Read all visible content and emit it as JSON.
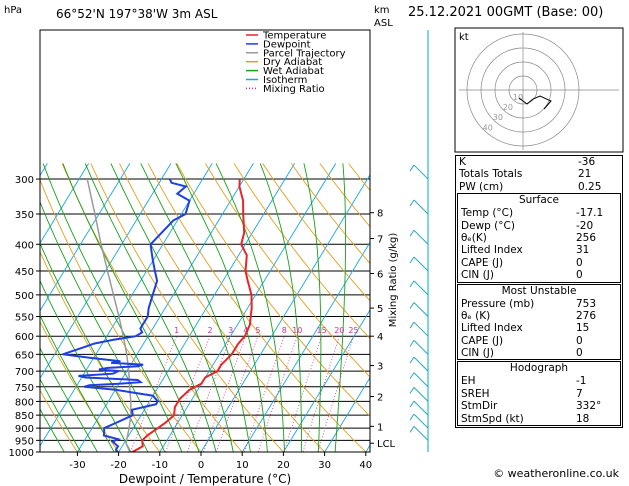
{
  "header": {
    "pressure_unit": "hPa",
    "location": "66°52'N  197°38'W  3m  ASL",
    "height_unit_top": "km",
    "height_unit_bottom": "ASL",
    "datetime": "25.12.2021  00GMT  (Base: 00)"
  },
  "legend": [
    {
      "label": "Temperature",
      "color": "#e8262a"
    },
    {
      "label": "Dewpoint",
      "color": "#1f3fe0"
    },
    {
      "label": "Parcel Trajectory",
      "color": "#9a9a9a"
    },
    {
      "label": "Dry Adiabat",
      "color": "#e0a020"
    },
    {
      "label": "Wet Adiabat",
      "color": "#1aa01a"
    },
    {
      "label": "Isotherm",
      "color": "#18a8e0"
    },
    {
      "label": "Mixing Ratio",
      "color": "#d0309a"
    }
  ],
  "chart_data": {
    "type": "line",
    "title": "",
    "xlabel": "Dewpoint / Temperature (°C)",
    "ylabel_right": "Mixing Ratio (g/kg)",
    "xlim": [
      -35,
      40
    ],
    "pressure_ticks": [
      300,
      350,
      400,
      450,
      500,
      550,
      600,
      650,
      700,
      750,
      800,
      850,
      900,
      950,
      1000
    ],
    "x_ticks": [
      -30,
      -20,
      -10,
      0,
      10,
      20,
      30,
      40
    ],
    "height_ticks": [
      {
        "label": "8",
        "p": 348
      },
      {
        "label": "7",
        "p": 390
      },
      {
        "label": "6",
        "p": 455
      },
      {
        "label": "5",
        "p": 530
      },
      {
        "label": "4",
        "p": 600
      },
      {
        "label": "3",
        "p": 683
      },
      {
        "label": "2",
        "p": 783
      },
      {
        "label": "1",
        "p": 893
      },
      {
        "label": "LCL",
        "p": 962
      }
    ],
    "mixing_ratio_labels": [
      "1",
      "2",
      "3",
      "4",
      "5",
      "8",
      "10",
      "15",
      "20",
      "25"
    ],
    "series": [
      {
        "name": "Temperature",
        "p": [
          1005,
          990,
          975,
          950,
          930,
          900,
          880,
          850,
          820,
          790,
          760,
          740,
          720,
          700,
          680,
          650,
          620,
          600,
          570,
          550,
          530,
          500,
          470,
          450,
          420,
          400,
          380,
          350,
          330,
          310,
          300
        ],
        "t": [
          -17,
          -16,
          -15,
          -16,
          -15.5,
          -14,
          -13,
          -12,
          -13,
          -13,
          -12,
          -10,
          -10,
          -8,
          -8,
          -7,
          -7,
          -6.5,
          -7,
          -8,
          -9,
          -11,
          -14,
          -16,
          -18,
          -21,
          -22,
          -25,
          -27,
          -30,
          -31
        ]
      },
      {
        "name": "Dewpoint",
        "p": [
          1005,
          990,
          975,
          955,
          945,
          930,
          900,
          880,
          860,
          850,
          830,
          810,
          800,
          780,
          770,
          760,
          750,
          745,
          740,
          735,
          728,
          720,
          715,
          708,
          700,
          695,
          690,
          685,
          680,
          675,
          670,
          665,
          660,
          650,
          640,
          630,
          620,
          610,
          600,
          590,
          580,
          560,
          550,
          530,
          500,
          470,
          450,
          430,
          410,
          400,
          380,
          360,
          350,
          330,
          320,
          310,
          305,
          300
        ],
        "t": [
          -20,
          -21,
          -21,
          -23,
          -22,
          -26,
          -27,
          -25,
          -23,
          -22,
          -23,
          -18,
          -18,
          -20,
          -25,
          -30,
          -38,
          -37,
          -30,
          -25,
          -26,
          -39,
          -41,
          -33,
          -32,
          -37,
          -35,
          -28,
          -27,
          -35,
          -33,
          -37,
          -41,
          -48,
          -46,
          -44,
          -42,
          -38,
          -33,
          -32,
          -33,
          -33,
          -33,
          -34,
          -35,
          -36,
          -38,
          -40,
          -42,
          -43,
          -42,
          -41,
          -39,
          -40,
          -44,
          -43,
          -47,
          -48
        ]
      },
      {
        "name": "Parcel Trajectory",
        "p": [
          1005,
          962,
          900,
          850,
          800,
          750,
          700,
          650,
          600,
          550,
          500,
          450,
          400,
          350,
          300
        ],
        "t": [
          -17,
          -19.5,
          -21,
          -22.5,
          -24.5,
          -27,
          -29.5,
          -32.5,
          -36,
          -40,
          -44.5,
          -49.5,
          -55,
          -61,
          -68
        ]
      }
    ],
    "grid": true
  },
  "hodograph": {
    "label": "kt",
    "rings": [
      "10",
      "20",
      "30",
      "40"
    ]
  },
  "indices": {
    "top": [
      {
        "label": "K",
        "value": "-36"
      },
      {
        "label": "Totals Totals",
        "value": "21"
      },
      {
        "label": "PW (cm)",
        "value": "0.25"
      }
    ],
    "surface": {
      "title": "Surface",
      "rows": [
        {
          "label": "Temp (°C)",
          "value": "-17.1"
        },
        {
          "label": "Dewp (°C)",
          "value": "-20"
        },
        {
          "label": "θₑ(K)",
          "value": "256"
        },
        {
          "label": "Lifted Index",
          "value": "31"
        },
        {
          "label": "CAPE (J)",
          "value": "0"
        },
        {
          "label": "CIN (J)",
          "value": "0"
        }
      ]
    },
    "most_unstable": {
      "title": "Most Unstable",
      "rows": [
        {
          "label": "Pressure (mb)",
          "value": "753"
        },
        {
          "label": "θₑ (K)",
          "value": "276"
        },
        {
          "label": "Lifted Index",
          "value": "15"
        },
        {
          "label": "CAPE (J)",
          "value": "0"
        },
        {
          "label": "CIN (J)",
          "value": "0"
        }
      ]
    },
    "hodograph": {
      "title": "Hodograph",
      "rows": [
        {
          "label": "EH",
          "value": "-1"
        },
        {
          "label": "SREH",
          "value": "7"
        },
        {
          "label": "StmDir",
          "value": "332°"
        },
        {
          "label": "StmSpd (kt)",
          "value": "18"
        }
      ]
    }
  },
  "footer": "© weatheronline.co.uk"
}
